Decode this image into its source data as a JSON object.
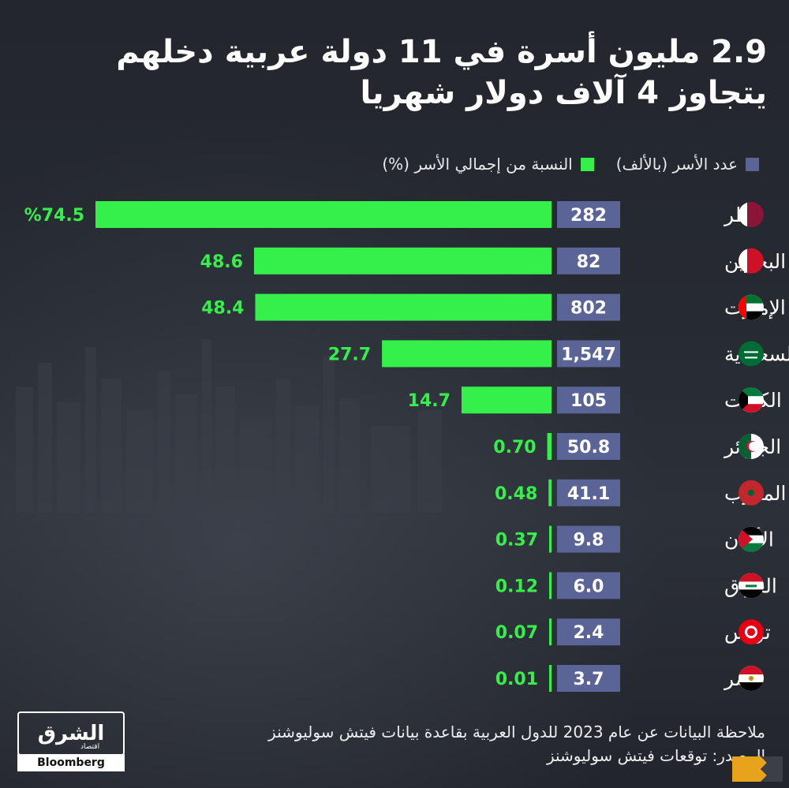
{
  "title_line1": "2.9 مليون أسرة في 11 دولة عربية دخلهم",
  "title_line2": "يتجاوز 4 آلاف دولار شهريا",
  "legend": {
    "households_label": "عدد الأسر (بالألف)",
    "share_label": "النسبة من إجمالي الأسر (%)"
  },
  "colors": {
    "households": "#5b6496",
    "share": "#35f04a",
    "share_text": "#35f04a"
  },
  "chart_data": {
    "type": "bar",
    "categories": [
      "قطر",
      "البحرين",
      "الإمارت",
      "السعودية",
      "الكويت",
      "الجزائر",
      "المغرب",
      "الأردن",
      "العراق",
      "تونس",
      "مصر"
    ],
    "flag_icons": [
      "qatar-flag-icon",
      "bahrain-flag-icon",
      "uae-flag-icon",
      "saudi-flag-icon",
      "kuwait-flag-icon",
      "algeria-flag-icon",
      "morocco-flag-icon",
      "jordan-flag-icon",
      "iraq-flag-icon",
      "tunisia-flag-icon",
      "egypt-flag-icon"
    ],
    "series": [
      {
        "name": "عدد الأسر (بالألف)",
        "values": [
          282,
          82,
          802,
          1547,
          105,
          50.8,
          41.1,
          9.8,
          6.0,
          2.4,
          3.7
        ],
        "labels": [
          "282",
          "82",
          "802",
          "1,547",
          "105",
          "50.8",
          "41.1",
          "9.8",
          "6.0",
          "2.4",
          "3.7"
        ]
      },
      {
        "name": "النسبة من إجمالي الأسر (%)",
        "values": [
          74.5,
          48.6,
          48.4,
          27.7,
          14.7,
          0.7,
          0.48,
          0.37,
          0.12,
          0.07,
          0.01
        ],
        "labels": [
          "%74.5",
          "48.6",
          "48.4",
          "27.7",
          "14.7",
          "0.70",
          "0.48",
          "0.37",
          "0.12",
          "0.07",
          "0.01"
        ]
      }
    ]
  },
  "note_line1": "ملاحظة البيانات عن عام 2023 للدول العربية بقاعدة بيانات فيتش سوليوشنز",
  "note_line2": "المصدر: توقعات فيتش سوليوشنز",
  "logo": {
    "brand": "الشرق",
    "sub": "اقتصاد",
    "partner": "Bloomberg"
  }
}
